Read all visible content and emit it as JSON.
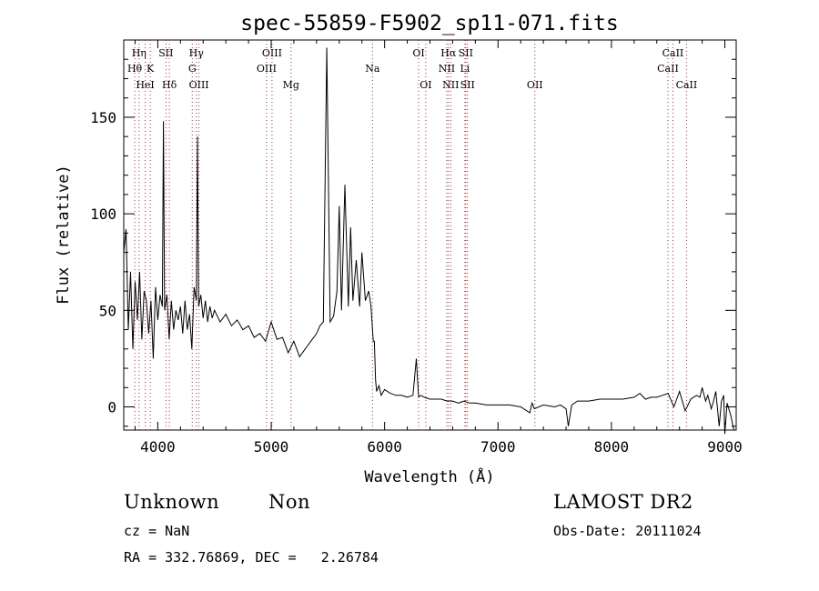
{
  "chart_data": {
    "type": "line",
    "title": "spec-55859-F5902_sp11-071.fits",
    "xlabel": "Wavelength (Å)",
    "ylabel": "Flux (relative)",
    "xlim": [
      3700,
      9100
    ],
    "ylim": [
      -12,
      190
    ],
    "xticks": [
      4000,
      5000,
      6000,
      7000,
      8000,
      9000
    ],
    "yticks": [
      0,
      50,
      100,
      150
    ],
    "grid": false,
    "series": [
      {
        "x": [
          3700,
          3720,
          3740,
          3760,
          3780,
          3800,
          3820,
          3840,
          3860,
          3880,
          3900,
          3920,
          3940,
          3960,
          3980,
          4000,
          4020,
          4040,
          4050,
          4060,
          4080,
          4100,
          4120,
          4140,
          4160,
          4180,
          4200,
          4220,
          4240,
          4260,
          4280,
          4300,
          4320,
          4340,
          4350,
          4360,
          4380,
          4400,
          4420,
          4440,
          4460,
          4480,
          4500,
          4550,
          4600,
          4650,
          4700,
          4750,
          4800,
          4850,
          4900,
          4950,
          5000,
          5050,
          5100,
          5150,
          5200,
          5250,
          5300,
          5350,
          5400,
          5430,
          5460,
          5490,
          5520,
          5550,
          5580,
          5600,
          5620,
          5650,
          5680,
          5700,
          5720,
          5750,
          5780,
          5800,
          5830,
          5860,
          5880,
          5900,
          5910,
          5920,
          5930,
          5950,
          5970,
          6000,
          6050,
          6100,
          6150,
          6200,
          6250,
          6280,
          6300,
          6320,
          6350,
          6400,
          6450,
          6500,
          6550,
          6600,
          6650,
          6700,
          6750,
          6800,
          6900,
          7000,
          7100,
          7200,
          7280,
          7300,
          7320,
          7400,
          7500,
          7550,
          7600,
          7620,
          7650,
          7700,
          7800,
          7900,
          8000,
          8100,
          8200,
          8250,
          8300,
          8350,
          8400,
          8450,
          8500,
          8550,
          8600,
          8650,
          8700,
          8750,
          8780,
          8800,
          8830,
          8850,
          8880,
          8900,
          8920,
          8950,
          8970,
          8990,
          9000,
          9020,
          9050,
          9080
        ],
        "y": [
          80,
          92,
          40,
          70,
          30,
          65,
          45,
          70,
          35,
          60,
          55,
          38,
          55,
          25,
          62,
          45,
          58,
          52,
          148,
          50,
          58,
          35,
          55,
          40,
          50,
          45,
          52,
          38,
          55,
          40,
          48,
          30,
          62,
          55,
          140,
          52,
          58,
          46,
          55,
          44,
          52,
          46,
          50,
          44,
          48,
          42,
          45,
          40,
          42,
          36,
          38,
          34,
          44,
          35,
          36,
          28,
          34,
          26,
          30,
          34,
          38,
          42,
          44,
          186,
          44,
          47,
          60,
          104,
          50,
          115,
          52,
          93,
          55,
          76,
          52,
          80,
          55,
          60,
          52,
          34,
          34,
          14,
          8,
          11,
          6,
          9,
          7,
          6,
          6,
          5,
          6,
          25,
          5,
          6,
          5,
          4,
          4,
          4,
          3,
          3,
          2,
          3,
          2,
          2,
          1,
          1,
          1,
          0,
          -3,
          2,
          -1,
          1,
          0,
          1,
          -1,
          -10,
          1,
          3,
          3,
          4,
          4,
          4,
          5,
          7,
          4,
          5,
          5,
          6,
          7,
          0,
          8,
          -2,
          4,
          6,
          5,
          10,
          3,
          6,
          -1,
          3,
          8,
          -10,
          3,
          6,
          -14,
          2,
          -4,
          -12
        ]
      }
    ],
    "line_markers": [
      {
        "label": "Hη",
        "wavelength": 3835,
        "row": 1
      },
      {
        "label": "Hθ",
        "wavelength": 3797,
        "row": 2
      },
      {
        "label": "K",
        "wavelength": 3934,
        "row": 2
      },
      {
        "label": "HeI",
        "wavelength": 3889,
        "row": 3
      },
      {
        "label": "SII",
        "wavelength": 4072,
        "row": 1
      },
      {
        "label": "Hδ",
        "wavelength": 4102,
        "row": 3
      },
      {
        "label": "Hγ",
        "wavelength": 4340,
        "row": 1
      },
      {
        "label": "G",
        "wavelength": 4304,
        "row": 2
      },
      {
        "label": "OIII",
        "wavelength": 4363,
        "row": 3
      },
      {
        "label": "OIII",
        "wavelength": 5007,
        "row": 1
      },
      {
        "label": "OIII",
        "wavelength": 4959,
        "row": 2
      },
      {
        "label": "Mg",
        "wavelength": 5175,
        "row": 3
      },
      {
        "label": "Na",
        "wavelength": 5893,
        "row": 2
      },
      {
        "label": "OI",
        "wavelength": 6300,
        "row": 1
      },
      {
        "label": "OI",
        "wavelength": 6363,
        "row": 3
      },
      {
        "label": "Hα",
        "wavelength": 6563,
        "row": 1
      },
      {
        "label": "SII",
        "wavelength": 6716,
        "row": 1
      },
      {
        "label": "NII",
        "wavelength": 6548,
        "row": 2
      },
      {
        "label": "Li",
        "wavelength": 6708,
        "row": 2
      },
      {
        "label": "NII",
        "wavelength": 6583,
        "row": 3
      },
      {
        "label": "SII",
        "wavelength": 6731,
        "row": 3
      },
      {
        "label": "OII",
        "wavelength": 7325,
        "row": 3
      },
      {
        "label": "CaII",
        "wavelength": 8542,
        "row": 1
      },
      {
        "label": "CaII",
        "wavelength": 8498,
        "row": 2
      },
      {
        "label": "CaII",
        "wavelength": 8662,
        "row": 3
      }
    ]
  },
  "info": {
    "object_class": "Unknown",
    "subclass": "Non",
    "survey": "LAMOST DR2",
    "cz": "cz = NaN",
    "obs_date": "Obs-Date: 20111024",
    "radec": "RA = 332.76869, DEC =   2.26784"
  }
}
